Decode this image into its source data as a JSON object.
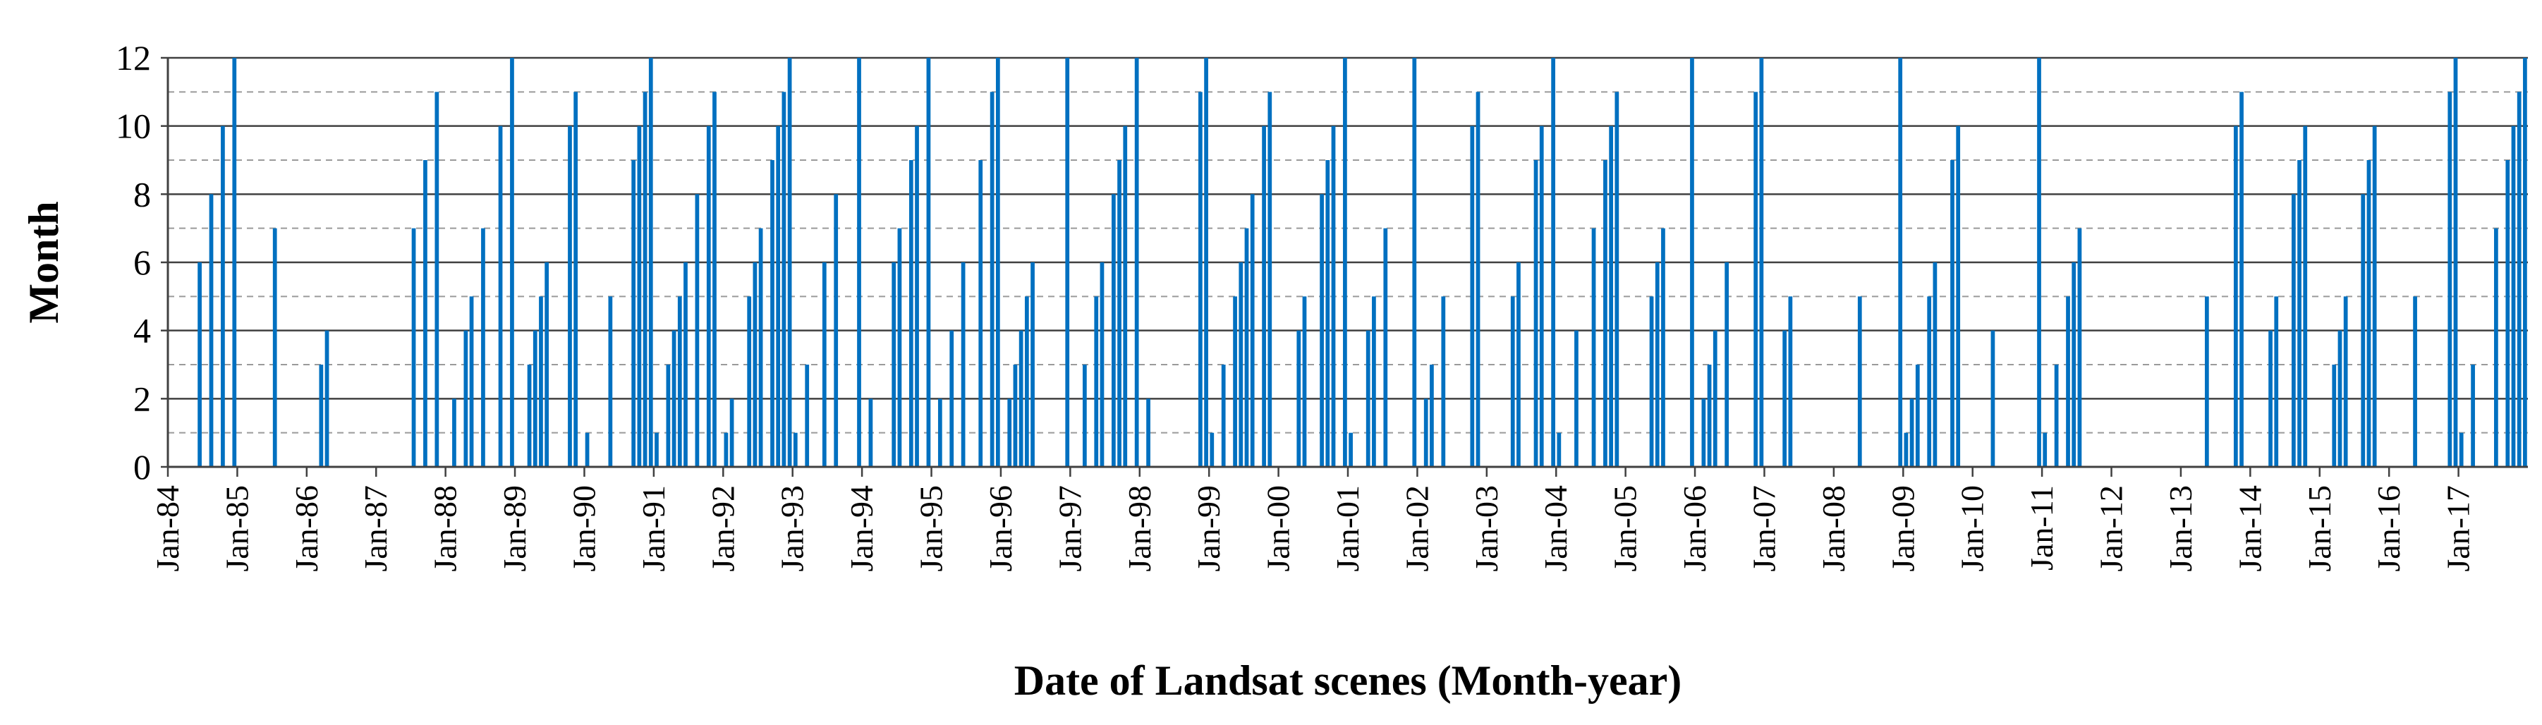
{
  "chart_data": {
    "type": "bar",
    "title": "",
    "xlabel": "Date of Landsat scenes (Month-year)",
    "ylabel": "Month",
    "ylim": [
      0,
      12
    ],
    "yticks": [
      0,
      2,
      4,
      6,
      8,
      10,
      12
    ],
    "grid": "horizontal gridlines: solid at even months, dashed at odd months",
    "legend": "none",
    "x_start": "1984-01",
    "x_end": "2017-12",
    "x_tick_labels": [
      "Jan-84",
      "Jan-85",
      "Jan-86",
      "Jan-87",
      "Jan-88",
      "Jan-89",
      "Jan-90",
      "Jan-91",
      "Jan-92",
      "Jan-93",
      "Jan-94",
      "Jan-95",
      "Jan-96",
      "Jan-97",
      "Jan-98",
      "Jan-99",
      "Jan-00",
      "Jan-01",
      "Jan-02",
      "Jan-03",
      "Jan-04",
      "Jan-05",
      "Jan-06",
      "Jan-07",
      "Jan-08",
      "Jan-09",
      "Jan-10",
      "Jan-11",
      "Jan-12",
      "Jan-13",
      "Jan-14",
      "Jan-15",
      "Jan-16",
      "Jan-17"
    ],
    "series": [
      {
        "color": "#0070c0",
        "points": [
          {
            "x": "1984-06",
            "y": 6
          },
          {
            "x": "1984-08",
            "y": 8
          },
          {
            "x": "1984-10",
            "y": 10
          },
          {
            "x": "1984-12",
            "y": 12
          },
          {
            "x": "1985-07",
            "y": 7
          },
          {
            "x": "1986-03",
            "y": 3
          },
          {
            "x": "1986-04",
            "y": 4
          },
          {
            "x": "1987-07",
            "y": 7
          },
          {
            "x": "1987-09",
            "y": 9
          },
          {
            "x": "1987-11",
            "y": 11
          },
          {
            "x": "1988-02",
            "y": 2
          },
          {
            "x": "1988-04",
            "y": 4
          },
          {
            "x": "1988-05",
            "y": 5
          },
          {
            "x": "1988-07",
            "y": 7
          },
          {
            "x": "1988-10",
            "y": 10
          },
          {
            "x": "1988-12",
            "y": 12
          },
          {
            "x": "1989-03",
            "y": 3
          },
          {
            "x": "1989-04",
            "y": 4
          },
          {
            "x": "1989-05",
            "y": 5
          },
          {
            "x": "1989-06",
            "y": 6
          },
          {
            "x": "1989-10",
            "y": 10
          },
          {
            "x": "1989-11",
            "y": 11
          },
          {
            "x": "1990-01",
            "y": 1
          },
          {
            "x": "1990-05",
            "y": 5
          },
          {
            "x": "1990-09",
            "y": 9
          },
          {
            "x": "1990-10",
            "y": 10
          },
          {
            "x": "1990-11",
            "y": 11
          },
          {
            "x": "1990-12",
            "y": 12
          },
          {
            "x": "1991-01",
            "y": 1
          },
          {
            "x": "1991-03",
            "y": 3
          },
          {
            "x": "1991-04",
            "y": 4
          },
          {
            "x": "1991-05",
            "y": 5
          },
          {
            "x": "1991-06",
            "y": 6
          },
          {
            "x": "1991-08",
            "y": 8
          },
          {
            "x": "1991-10",
            "y": 10
          },
          {
            "x": "1991-11",
            "y": 11
          },
          {
            "x": "1992-01",
            "y": 1
          },
          {
            "x": "1992-02",
            "y": 2
          },
          {
            "x": "1992-05",
            "y": 5
          },
          {
            "x": "1992-06",
            "y": 6
          },
          {
            "x": "1992-07",
            "y": 7
          },
          {
            "x": "1992-09",
            "y": 9
          },
          {
            "x": "1992-10",
            "y": 10
          },
          {
            "x": "1992-11",
            "y": 11
          },
          {
            "x": "1992-12",
            "y": 12
          },
          {
            "x": "1993-01",
            "y": 1
          },
          {
            "x": "1993-03",
            "y": 3
          },
          {
            "x": "1993-06",
            "y": 6
          },
          {
            "x": "1993-08",
            "y": 8
          },
          {
            "x": "1993-12",
            "y": 12
          },
          {
            "x": "1994-02",
            "y": 2
          },
          {
            "x": "1994-06",
            "y": 6
          },
          {
            "x": "1994-07",
            "y": 7
          },
          {
            "x": "1994-09",
            "y": 9
          },
          {
            "x": "1994-10",
            "y": 10
          },
          {
            "x": "1994-12",
            "y": 12
          },
          {
            "x": "1995-02",
            "y": 2
          },
          {
            "x": "1995-04",
            "y": 4
          },
          {
            "x": "1995-06",
            "y": 6
          },
          {
            "x": "1995-09",
            "y": 9
          },
          {
            "x": "1995-11",
            "y": 11
          },
          {
            "x": "1995-12",
            "y": 12
          },
          {
            "x": "1996-02",
            "y": 2
          },
          {
            "x": "1996-03",
            "y": 3
          },
          {
            "x": "1996-04",
            "y": 4
          },
          {
            "x": "1996-05",
            "y": 5
          },
          {
            "x": "1996-06",
            "y": 6
          },
          {
            "x": "1996-12",
            "y": 12
          },
          {
            "x": "1997-03",
            "y": 3
          },
          {
            "x": "1997-05",
            "y": 5
          },
          {
            "x": "1997-06",
            "y": 6
          },
          {
            "x": "1997-08",
            "y": 8
          },
          {
            "x": "1997-09",
            "y": 9
          },
          {
            "x": "1997-10",
            "y": 10
          },
          {
            "x": "1997-12",
            "y": 12
          },
          {
            "x": "1998-02",
            "y": 2
          },
          {
            "x": "1998-11",
            "y": 11
          },
          {
            "x": "1998-12",
            "y": 12
          },
          {
            "x": "1999-01",
            "y": 1
          },
          {
            "x": "1999-03",
            "y": 3
          },
          {
            "x": "1999-05",
            "y": 5
          },
          {
            "x": "1999-06",
            "y": 6
          },
          {
            "x": "1999-07",
            "y": 7
          },
          {
            "x": "1999-08",
            "y": 8
          },
          {
            "x": "1999-10",
            "y": 10
          },
          {
            "x": "1999-11",
            "y": 11
          },
          {
            "x": "2000-04",
            "y": 4
          },
          {
            "x": "2000-05",
            "y": 5
          },
          {
            "x": "2000-08",
            "y": 8
          },
          {
            "x": "2000-09",
            "y": 9
          },
          {
            "x": "2000-10",
            "y": 10
          },
          {
            "x": "2000-12",
            "y": 12
          },
          {
            "x": "2001-01",
            "y": 1
          },
          {
            "x": "2001-04",
            "y": 4
          },
          {
            "x": "2001-05",
            "y": 5
          },
          {
            "x": "2001-07",
            "y": 7
          },
          {
            "x": "2001-12",
            "y": 12
          },
          {
            "x": "2002-02",
            "y": 2
          },
          {
            "x": "2002-03",
            "y": 3
          },
          {
            "x": "2002-05",
            "y": 5
          },
          {
            "x": "2002-10",
            "y": 10
          },
          {
            "x": "2002-11",
            "y": 11
          },
          {
            "x": "2003-05",
            "y": 5
          },
          {
            "x": "2003-06",
            "y": 6
          },
          {
            "x": "2003-09",
            "y": 9
          },
          {
            "x": "2003-10",
            "y": 10
          },
          {
            "x": "2003-12",
            "y": 12
          },
          {
            "x": "2004-01",
            "y": 1
          },
          {
            "x": "2004-04",
            "y": 4
          },
          {
            "x": "2004-07",
            "y": 7
          },
          {
            "x": "2004-09",
            "y": 9
          },
          {
            "x": "2004-10",
            "y": 10
          },
          {
            "x": "2004-11",
            "y": 11
          },
          {
            "x": "2005-05",
            "y": 5
          },
          {
            "x": "2005-06",
            "y": 6
          },
          {
            "x": "2005-07",
            "y": 7
          },
          {
            "x": "2005-12",
            "y": 12
          },
          {
            "x": "2006-02",
            "y": 2
          },
          {
            "x": "2006-03",
            "y": 3
          },
          {
            "x": "2006-04",
            "y": 4
          },
          {
            "x": "2006-06",
            "y": 6
          },
          {
            "x": "2006-11",
            "y": 11
          },
          {
            "x": "2006-12",
            "y": 12
          },
          {
            "x": "2007-04",
            "y": 4
          },
          {
            "x": "2007-05",
            "y": 5
          },
          {
            "x": "2008-05",
            "y": 5
          },
          {
            "x": "2008-12",
            "y": 12
          },
          {
            "x": "2009-01",
            "y": 1
          },
          {
            "x": "2009-02",
            "y": 2
          },
          {
            "x": "2009-03",
            "y": 3
          },
          {
            "x": "2009-05",
            "y": 5
          },
          {
            "x": "2009-06",
            "y": 6
          },
          {
            "x": "2009-09",
            "y": 9
          },
          {
            "x": "2009-10",
            "y": 10
          },
          {
            "x": "2010-04",
            "y": 4
          },
          {
            "x": "2010-12",
            "y": 12
          },
          {
            "x": "2011-01",
            "y": 1
          },
          {
            "x": "2011-03",
            "y": 3
          },
          {
            "x": "2011-05",
            "y": 5
          },
          {
            "x": "2011-06",
            "y": 6
          },
          {
            "x": "2011-07",
            "y": 7
          },
          {
            "x": "2013-05",
            "y": 5
          },
          {
            "x": "2013-10",
            "y": 10
          },
          {
            "x": "2013-11",
            "y": 11
          },
          {
            "x": "2014-04",
            "y": 4
          },
          {
            "x": "2014-05",
            "y": 5
          },
          {
            "x": "2014-08",
            "y": 8
          },
          {
            "x": "2014-09",
            "y": 9
          },
          {
            "x": "2014-10",
            "y": 10
          },
          {
            "x": "2015-03",
            "y": 3
          },
          {
            "x": "2015-04",
            "y": 4
          },
          {
            "x": "2015-05",
            "y": 5
          },
          {
            "x": "2015-08",
            "y": 8
          },
          {
            "x": "2015-09",
            "y": 9
          },
          {
            "x": "2015-10",
            "y": 10
          },
          {
            "x": "2016-05",
            "y": 5
          },
          {
            "x": "2016-11",
            "y": 11
          },
          {
            "x": "2016-12",
            "y": 12
          },
          {
            "x": "2017-01",
            "y": 1
          },
          {
            "x": "2017-03",
            "y": 3
          },
          {
            "x": "2017-07",
            "y": 7
          },
          {
            "x": "2017-09",
            "y": 9
          },
          {
            "x": "2017-10",
            "y": 10
          },
          {
            "x": "2017-11",
            "y": 11
          },
          {
            "x": "2017-12",
            "y": 12
          }
        ]
      }
    ]
  }
}
